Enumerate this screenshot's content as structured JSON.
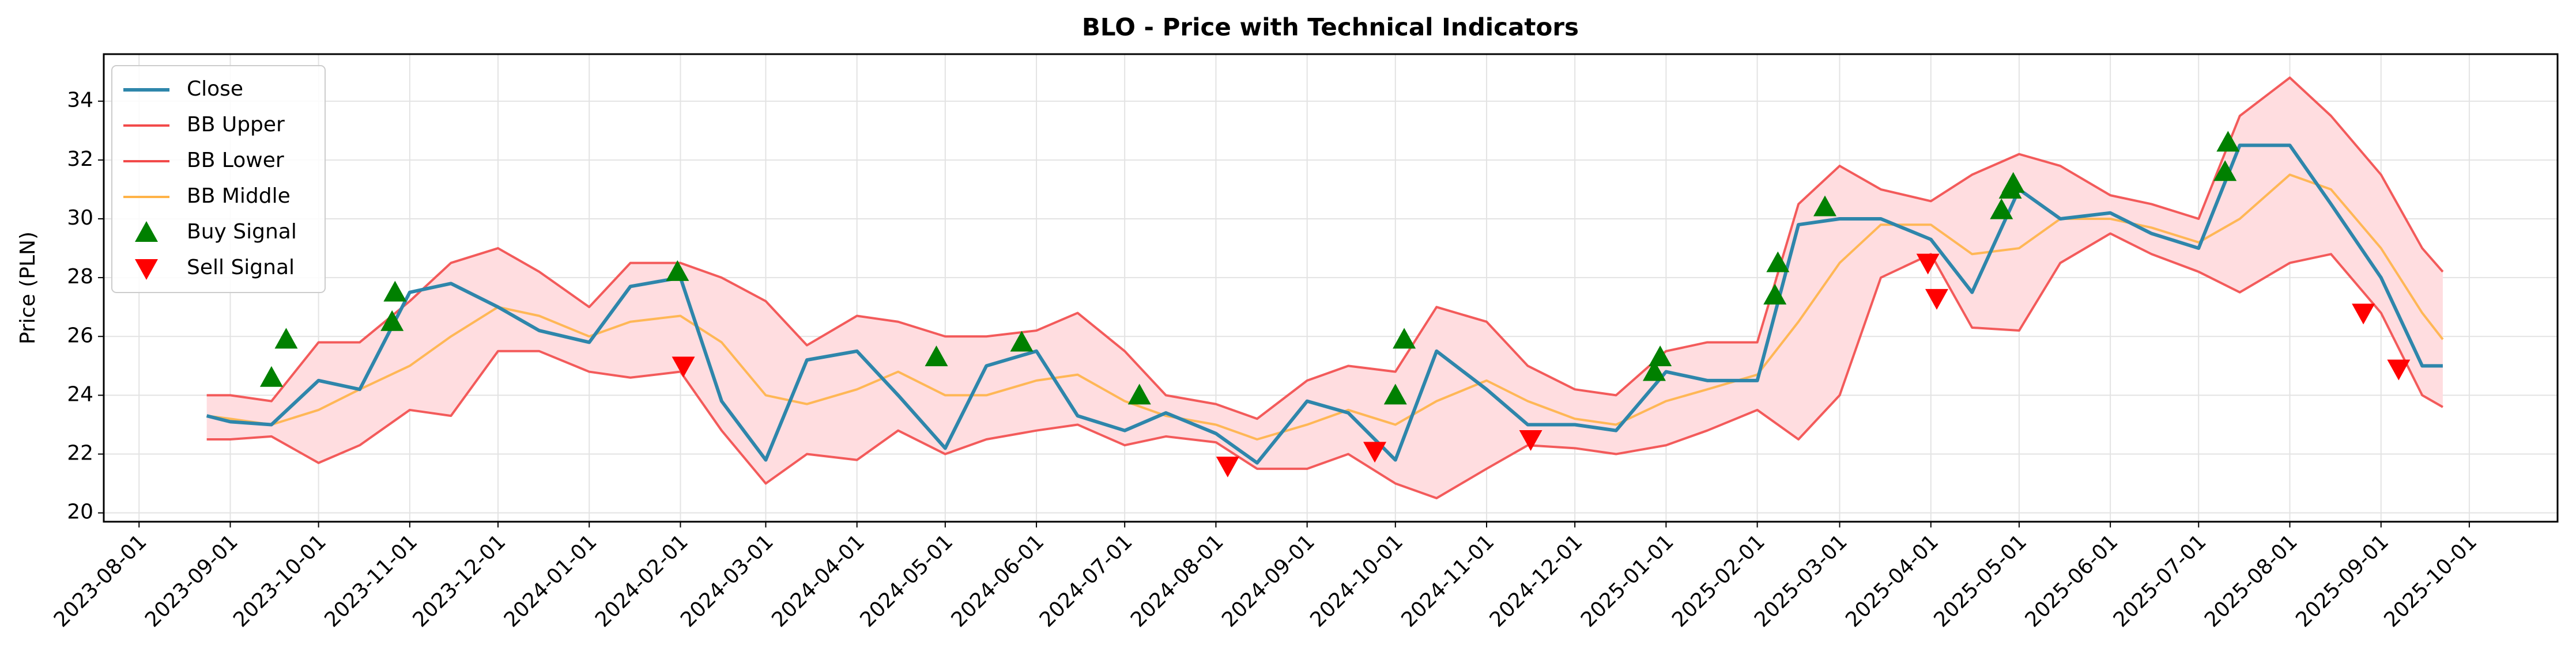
{
  "chart_data": {
    "type": "line",
    "title": "BLO - Price with Technical Indicators",
    "ylabel": "Price (PLN)",
    "x": [
      "2023-08-24",
      "2023-09-01",
      "2023-09-15",
      "2023-10-01",
      "2023-10-15",
      "2023-11-01",
      "2023-11-15",
      "2023-12-01",
      "2023-12-15",
      "2024-01-01",
      "2024-01-15",
      "2024-02-01",
      "2024-02-15",
      "2024-03-01",
      "2024-03-15",
      "2024-04-01",
      "2024-04-15",
      "2024-05-01",
      "2024-05-15",
      "2024-06-01",
      "2024-06-15",
      "2024-07-01",
      "2024-07-15",
      "2024-08-01",
      "2024-08-15",
      "2024-09-01",
      "2024-09-15",
      "2024-10-01",
      "2024-10-15",
      "2024-11-01",
      "2024-11-15",
      "2024-12-01",
      "2024-12-15",
      "2025-01-01",
      "2025-01-15",
      "2025-02-01",
      "2025-02-15",
      "2025-03-01",
      "2025-03-15",
      "2025-04-01",
      "2025-04-15",
      "2025-05-01",
      "2025-05-15",
      "2025-06-01",
      "2025-06-15",
      "2025-07-01",
      "2025-07-15",
      "2025-08-01",
      "2025-08-15",
      "2025-09-01",
      "2025-09-15",
      "2025-09-22"
    ],
    "series": [
      {
        "name": "Close",
        "color": "#2e86ab",
        "width": 6,
        "values": [
          23.3,
          23.1,
          23.0,
          24.5,
          24.2,
          27.5,
          27.8,
          27.0,
          26.2,
          25.8,
          27.7,
          28.0,
          23.8,
          21.8,
          25.2,
          25.5,
          24.0,
          22.2,
          25.0,
          25.5,
          23.3,
          22.8,
          23.4,
          22.7,
          21.7,
          23.8,
          23.4,
          21.8,
          25.5,
          24.2,
          23.0,
          23.0,
          22.8,
          24.8,
          24.5,
          24.5,
          29.8,
          30.0,
          30.0,
          29.3,
          27.5,
          31.0,
          30.0,
          30.2,
          29.5,
          29.0,
          32.5,
          32.5,
          30.5,
          28.0,
          25.0,
          25.0
        ]
      },
      {
        "name": "BB Upper",
        "color": "#f24a4a",
        "width": 4,
        "values": [
          24.0,
          24.0,
          23.8,
          25.8,
          25.8,
          27.2,
          28.5,
          29.0,
          28.2,
          27.0,
          28.5,
          28.5,
          28.0,
          27.2,
          25.7,
          26.7,
          26.5,
          26.0,
          26.0,
          26.2,
          26.8,
          25.5,
          24.0,
          23.7,
          23.2,
          24.5,
          25.0,
          24.8,
          27.0,
          26.5,
          25.0,
          24.2,
          24.0,
          25.5,
          25.8,
          25.8,
          30.5,
          31.8,
          31.0,
          30.6,
          31.5,
          32.2,
          31.8,
          30.8,
          30.5,
          30.0,
          33.5,
          34.8,
          33.5,
          31.5,
          29.0,
          28.2
        ]
      },
      {
        "name": "BB Lower",
        "color": "#f24a4a",
        "width": 4,
        "values": [
          22.5,
          22.5,
          22.6,
          21.7,
          22.3,
          23.5,
          23.3,
          25.5,
          25.5,
          24.8,
          24.6,
          24.8,
          22.8,
          21.0,
          22.0,
          21.8,
          22.8,
          22.0,
          22.5,
          22.8,
          23.0,
          22.3,
          22.6,
          22.4,
          21.5,
          21.5,
          22.0,
          21.0,
          20.5,
          21.5,
          22.3,
          22.2,
          22.0,
          22.3,
          22.8,
          23.5,
          22.5,
          24.0,
          28.0,
          28.8,
          26.3,
          26.2,
          28.5,
          29.5,
          28.8,
          28.2,
          27.5,
          28.5,
          28.8,
          26.8,
          24.0,
          23.6
        ]
      },
      {
        "name": "BB Middle",
        "color": "#ffb347",
        "width": 4,
        "values": [
          23.3,
          23.2,
          23.0,
          23.5,
          24.2,
          25.0,
          26.0,
          27.0,
          26.7,
          26.0,
          26.5,
          26.7,
          25.8,
          24.0,
          23.7,
          24.2,
          24.8,
          24.0,
          24.0,
          24.5,
          24.7,
          23.8,
          23.3,
          23.0,
          22.5,
          23.0,
          23.5,
          23.0,
          23.8,
          24.5,
          23.8,
          23.2,
          23.0,
          23.8,
          24.2,
          24.7,
          26.5,
          28.5,
          29.8,
          29.8,
          28.8,
          29.0,
          30.0,
          30.0,
          29.7,
          29.2,
          30.0,
          31.5,
          31.0,
          29.0,
          26.8,
          25.9
        ]
      },
      {
        "name": "Buy Signal",
        "type": "scatter",
        "marker": "up",
        "color": "#008000",
        "x": [
          "2023-09-15",
          "2023-09-20",
          "2023-10-26",
          "2023-10-27",
          "2024-01-31",
          "2024-04-28",
          "2024-05-27",
          "2024-07-06",
          "2024-10-01",
          "2024-10-04",
          "2024-12-28",
          "2024-12-30",
          "2025-02-07",
          "2025-02-08",
          "2025-02-24",
          "2025-04-25",
          "2025-04-28",
          "2025-04-29",
          "2025-07-10",
          "2025-07-11"
        ],
        "values": [
          24.6,
          25.9,
          26.5,
          27.5,
          28.2,
          25.3,
          25.8,
          24.0,
          24.0,
          25.9,
          24.8,
          25.3,
          27.4,
          28.5,
          30.4,
          30.3,
          31.0,
          31.2,
          31.6,
          32.6
        ]
      },
      {
        "name": "Sell Signal",
        "type": "scatter",
        "marker": "down",
        "color": "#ff0000",
        "x": [
          "2024-02-02",
          "2024-08-05",
          "2024-09-24",
          "2024-11-16",
          "2025-03-31",
          "2025-04-03",
          "2025-08-26",
          "2025-09-07"
        ],
        "values": [
          25.0,
          21.6,
          22.1,
          22.5,
          28.5,
          27.3,
          26.8,
          24.9
        ]
      }
    ],
    "band_color": "#ffdde0",
    "xlim": [
      "2023-07-20",
      "2025-10-31"
    ],
    "xticks": [
      "2023-08-01",
      "2023-09-01",
      "2023-10-01",
      "2023-11-01",
      "2023-12-01",
      "2024-01-01",
      "2024-02-01",
      "2024-03-01",
      "2024-04-01",
      "2024-05-01",
      "2024-06-01",
      "2024-07-01",
      "2024-08-01",
      "2024-09-01",
      "2024-10-01",
      "2024-11-01",
      "2024-12-01",
      "2025-01-01",
      "2025-02-01",
      "2025-03-01",
      "2025-04-01",
      "2025-05-01",
      "2025-06-01",
      "2025-07-01",
      "2025-08-01",
      "2025-09-01",
      "2025-10-01"
    ],
    "ylim": [
      19.7,
      35.6
    ],
    "yticks": [
      20,
      22,
      24,
      26,
      28,
      30,
      32,
      34
    ],
    "grid": true,
    "legend": "upper left"
  }
}
